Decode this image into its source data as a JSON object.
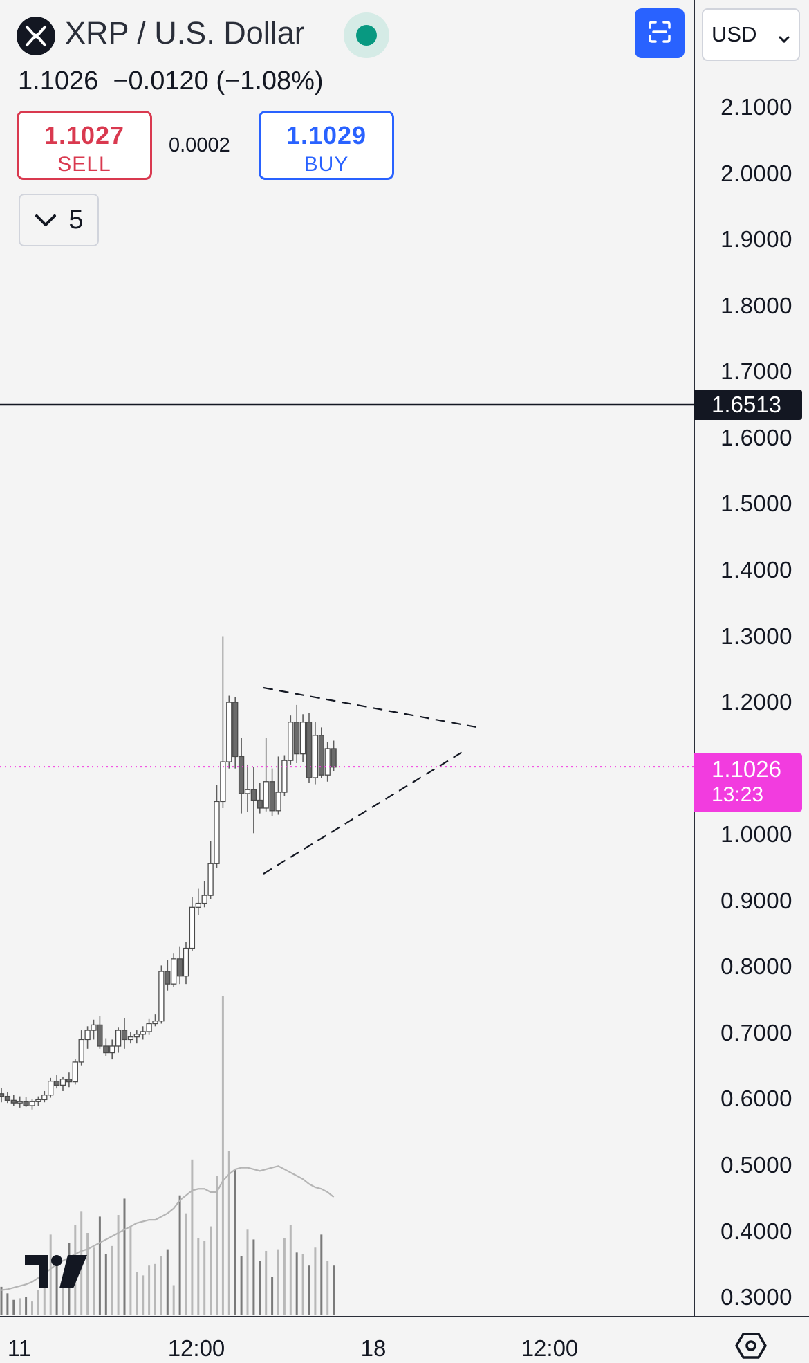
{
  "header": {
    "title": "XRP / U.S. Dollar",
    "last": "1.1026",
    "change": "−0.0120 (−1.08%)",
    "sell_price": "1.1027",
    "sell_label": "SELL",
    "buy_price": "1.1029",
    "buy_label": "BUY",
    "spread": "0.0002",
    "indicators_count": "5",
    "currency": "USD"
  },
  "icons": [
    "xrp-logo-icon",
    "market-status-icon",
    "fullscreen-icon",
    "chevron-down-icon",
    "tradingview-logo-icon",
    "settings-icon"
  ],
  "colors": {
    "up": "#ffffff",
    "down": "#6b6b6b",
    "sell": "#d9394f",
    "buy": "#2962ff",
    "current_price": "#f23cdf",
    "status": "#089981"
  },
  "price_axis": {
    "ticks": [
      "2.1000",
      "2.0000",
      "1.9000",
      "1.8000",
      "1.7000",
      "1.6000",
      "1.5000",
      "1.4000",
      "1.3000",
      "1.2000",
      "1.0000",
      "0.9000",
      "0.8000",
      "0.7000",
      "0.6000",
      "0.5000",
      "0.4000",
      "0.3000"
    ],
    "horizontal_line": "1.6513",
    "current_price": "1.1026",
    "countdown": "13:23"
  },
  "time_axis": {
    "labels": [
      "11",
      "12:00",
      "18",
      "12:00"
    ]
  },
  "chart_data": {
    "type": "candlestick",
    "series": [
      {
        "name": "XRP / U.S. Dollar",
        "ohlc": [
          [
            0.608,
            0.617,
            0.595,
            0.604
          ],
          [
            0.604,
            0.61,
            0.594,
            0.598
          ],
          [
            0.598,
            0.606,
            0.59,
            0.594
          ],
          [
            0.594,
            0.604,
            0.587,
            0.596
          ],
          [
            0.596,
            0.603,
            0.588,
            0.59
          ],
          [
            0.59,
            0.6,
            0.584,
            0.596
          ],
          [
            0.596,
            0.604,
            0.589,
            0.599
          ],
          [
            0.599,
            0.612,
            0.595,
            0.606
          ],
          [
            0.606,
            0.632,
            0.602,
            0.627
          ],
          [
            0.627,
            0.636,
            0.616,
            0.621
          ],
          [
            0.621,
            0.634,
            0.612,
            0.63
          ],
          [
            0.63,
            0.64,
            0.618,
            0.626
          ],
          [
            0.626,
            0.661,
            0.622,
            0.656
          ],
          [
            0.656,
            0.704,
            0.65,
            0.69
          ],
          [
            0.69,
            0.71,
            0.676,
            0.704
          ],
          [
            0.704,
            0.72,
            0.69,
            0.712
          ],
          [
            0.712,
            0.726,
            0.676,
            0.68
          ],
          [
            0.68,
            0.692,
            0.665,
            0.67
          ],
          [
            0.67,
            0.69,
            0.66,
            0.68
          ],
          [
            0.68,
            0.708,
            0.67,
            0.704
          ],
          [
            0.704,
            0.722,
            0.676,
            0.69
          ],
          [
            0.69,
            0.702,
            0.684,
            0.694
          ],
          [
            0.694,
            0.704,
            0.684,
            0.698
          ],
          [
            0.698,
            0.71,
            0.69,
            0.702
          ],
          [
            0.702,
            0.721,
            0.697,
            0.714
          ],
          [
            0.714,
            0.728,
            0.71,
            0.718
          ],
          [
            0.718,
            0.802,
            0.714,
            0.793
          ],
          [
            0.793,
            0.81,
            0.764,
            0.774
          ],
          [
            0.774,
            0.82,
            0.77,
            0.812
          ],
          [
            0.812,
            0.83,
            0.774,
            0.786
          ],
          [
            0.786,
            0.838,
            0.774,
            0.828
          ],
          [
            0.828,
            0.906,
            0.824,
            0.89
          ],
          [
            0.89,
            0.918,
            0.878,
            0.896
          ],
          [
            0.896,
            0.93,
            0.89,
            0.908
          ],
          [
            0.908,
            0.99,
            0.902,
            0.956
          ],
          [
            0.956,
            1.075,
            0.95,
            1.05
          ],
          [
            1.05,
            1.3,
            1.04,
            1.11
          ],
          [
            1.11,
            1.21,
            1.1,
            1.2
          ],
          [
            1.2,
            1.208,
            1.1,
            1.118
          ],
          [
            1.118,
            1.146,
            1.032,
            1.062
          ],
          [
            1.062,
            1.106,
            1.034,
            1.068
          ],
          [
            1.068,
            1.102,
            1.002,
            1.052
          ],
          [
            1.052,
            1.078,
            1.032,
            1.04
          ],
          [
            1.04,
            1.146,
            1.035,
            1.08
          ],
          [
            1.08,
            1.1,
            1.028,
            1.036
          ],
          [
            1.036,
            1.118,
            1.03,
            1.064
          ],
          [
            1.064,
            1.12,
            1.058,
            1.112
          ],
          [
            1.112,
            1.18,
            1.106,
            1.17
          ],
          [
            1.17,
            1.196,
            1.108,
            1.122
          ],
          [
            1.122,
            1.182,
            1.11,
            1.17
          ],
          [
            1.17,
            1.184,
            1.078,
            1.086
          ],
          [
            1.086,
            1.17,
            1.076,
            1.15
          ],
          [
            1.15,
            1.162,
            1.085,
            1.09
          ],
          [
            1.09,
            1.14,
            1.08,
            1.13
          ],
          [
            1.13,
            1.142,
            1.096,
            1.102
          ]
        ]
      }
    ],
    "volume": [
      34,
      26,
      18,
      20,
      22,
      16,
      30,
      44,
      98,
      60,
      40,
      88,
      110,
      126,
      100,
      82,
      120,
      74,
      84,
      122,
      142,
      108,
      52,
      48,
      60,
      62,
      72,
      80,
      36,
      146,
      124,
      190,
      94,
      90,
      108,
      170,
      390,
      200,
      178,
      72,
      104,
      92,
      66,
      78,
      46,
      80,
      94,
      110,
      76,
      74,
      60,
      82,
      98,
      66,
      60
    ],
    "volume_ma": [
      30,
      31,
      33,
      35,
      37,
      40,
      45,
      50,
      56,
      62,
      66,
      70,
      74,
      78,
      80,
      84,
      88,
      92,
      96,
      100,
      104,
      108,
      112,
      114,
      116,
      116,
      120,
      124,
      130,
      140,
      146,
      152,
      154,
      154,
      150,
      150,
      164,
      172,
      178,
      180,
      180,
      178,
      176,
      178,
      180,
      182,
      178,
      174,
      170,
      166,
      160,
      156,
      154,
      150,
      144
    ],
    "ylim": [
      0.28,
      2.16
    ],
    "grid": false
  }
}
